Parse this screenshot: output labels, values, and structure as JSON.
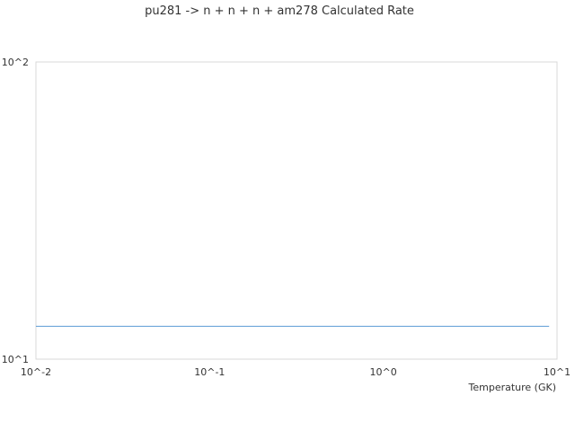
{
  "chart_data": {
    "type": "line",
    "title": "pu281 -> n + n + n + am278 Calculated Rate",
    "xlabel": "Temperature (GK)",
    "ylabel": "",
    "x_scale": "log",
    "y_scale": "log",
    "xlim": [
      0.01,
      10
    ],
    "ylim": [
      10,
      100
    ],
    "x_ticks": [
      "10^-2",
      "10^-1",
      "10^0",
      "10^1"
    ],
    "y_ticks": [
      "10^1",
      "10^2"
    ],
    "grid": false,
    "series": [
      {
        "x": [
          0.01,
          0.1,
          1,
          9
        ],
        "y": [
          12.9,
          12.9,
          12.9,
          12.9
        ],
        "color": "#5b9bd5"
      }
    ],
    "frame_color": "#d9d9d9"
  }
}
